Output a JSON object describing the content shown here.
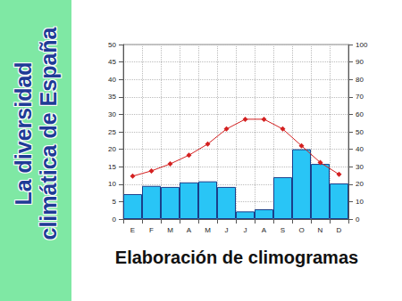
{
  "chart_data": {
    "type": "climograph",
    "title": "La diversidad\nclimática de España",
    "subtitle": "Elaboración de climogramas",
    "categories": [
      "E",
      "F",
      "M",
      "A",
      "M",
      "J",
      "J",
      "A",
      "S",
      "O",
      "N",
      "D"
    ],
    "series": [
      {
        "type": "bar",
        "axis": "y2",
        "color": "#29c5f6",
        "values": [
          14.3,
          19,
          18.4,
          21,
          21.6,
          18.4,
          4.4,
          5.6,
          24,
          40,
          31.6,
          20.4
        ]
      },
      {
        "type": "line",
        "axis": "y",
        "color": "#d42020",
        "marker": "diamond",
        "values": [
          12.3,
          13.8,
          15.8,
          18.3,
          21.5,
          25.8,
          28.6,
          28.6,
          25.8,
          21,
          16.2,
          12.8
        ]
      }
    ],
    "ylim": [
      0,
      50
    ],
    "yticks": [
      0,
      5,
      10,
      15,
      20,
      25,
      30,
      35,
      40,
      45,
      50
    ],
    "y2lim": [
      0,
      100
    ],
    "y2ticks": [
      0,
      10,
      20,
      30,
      40,
      50,
      60,
      70,
      80,
      90,
      100
    ],
    "grid": true
  }
}
